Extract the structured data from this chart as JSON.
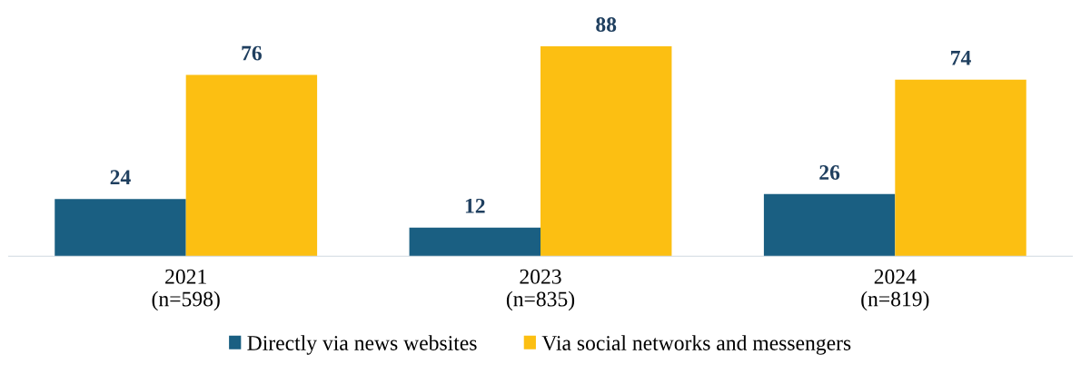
{
  "chart_data": {
    "type": "bar",
    "categories": [
      "2021\n(n=598)",
      "2023\n(n=835)",
      "2024\n(n=819)"
    ],
    "series": [
      {
        "name": "Directly via news websites",
        "color": "#1a5f82",
        "values": [
          24,
          12,
          26
        ]
      },
      {
        "name": "Via social networks and messengers",
        "color": "#fcbf12",
        "values": [
          76,
          88,
          74
        ]
      }
    ],
    "data_labels": true,
    "legend": "bottom",
    "grid": false
  }
}
